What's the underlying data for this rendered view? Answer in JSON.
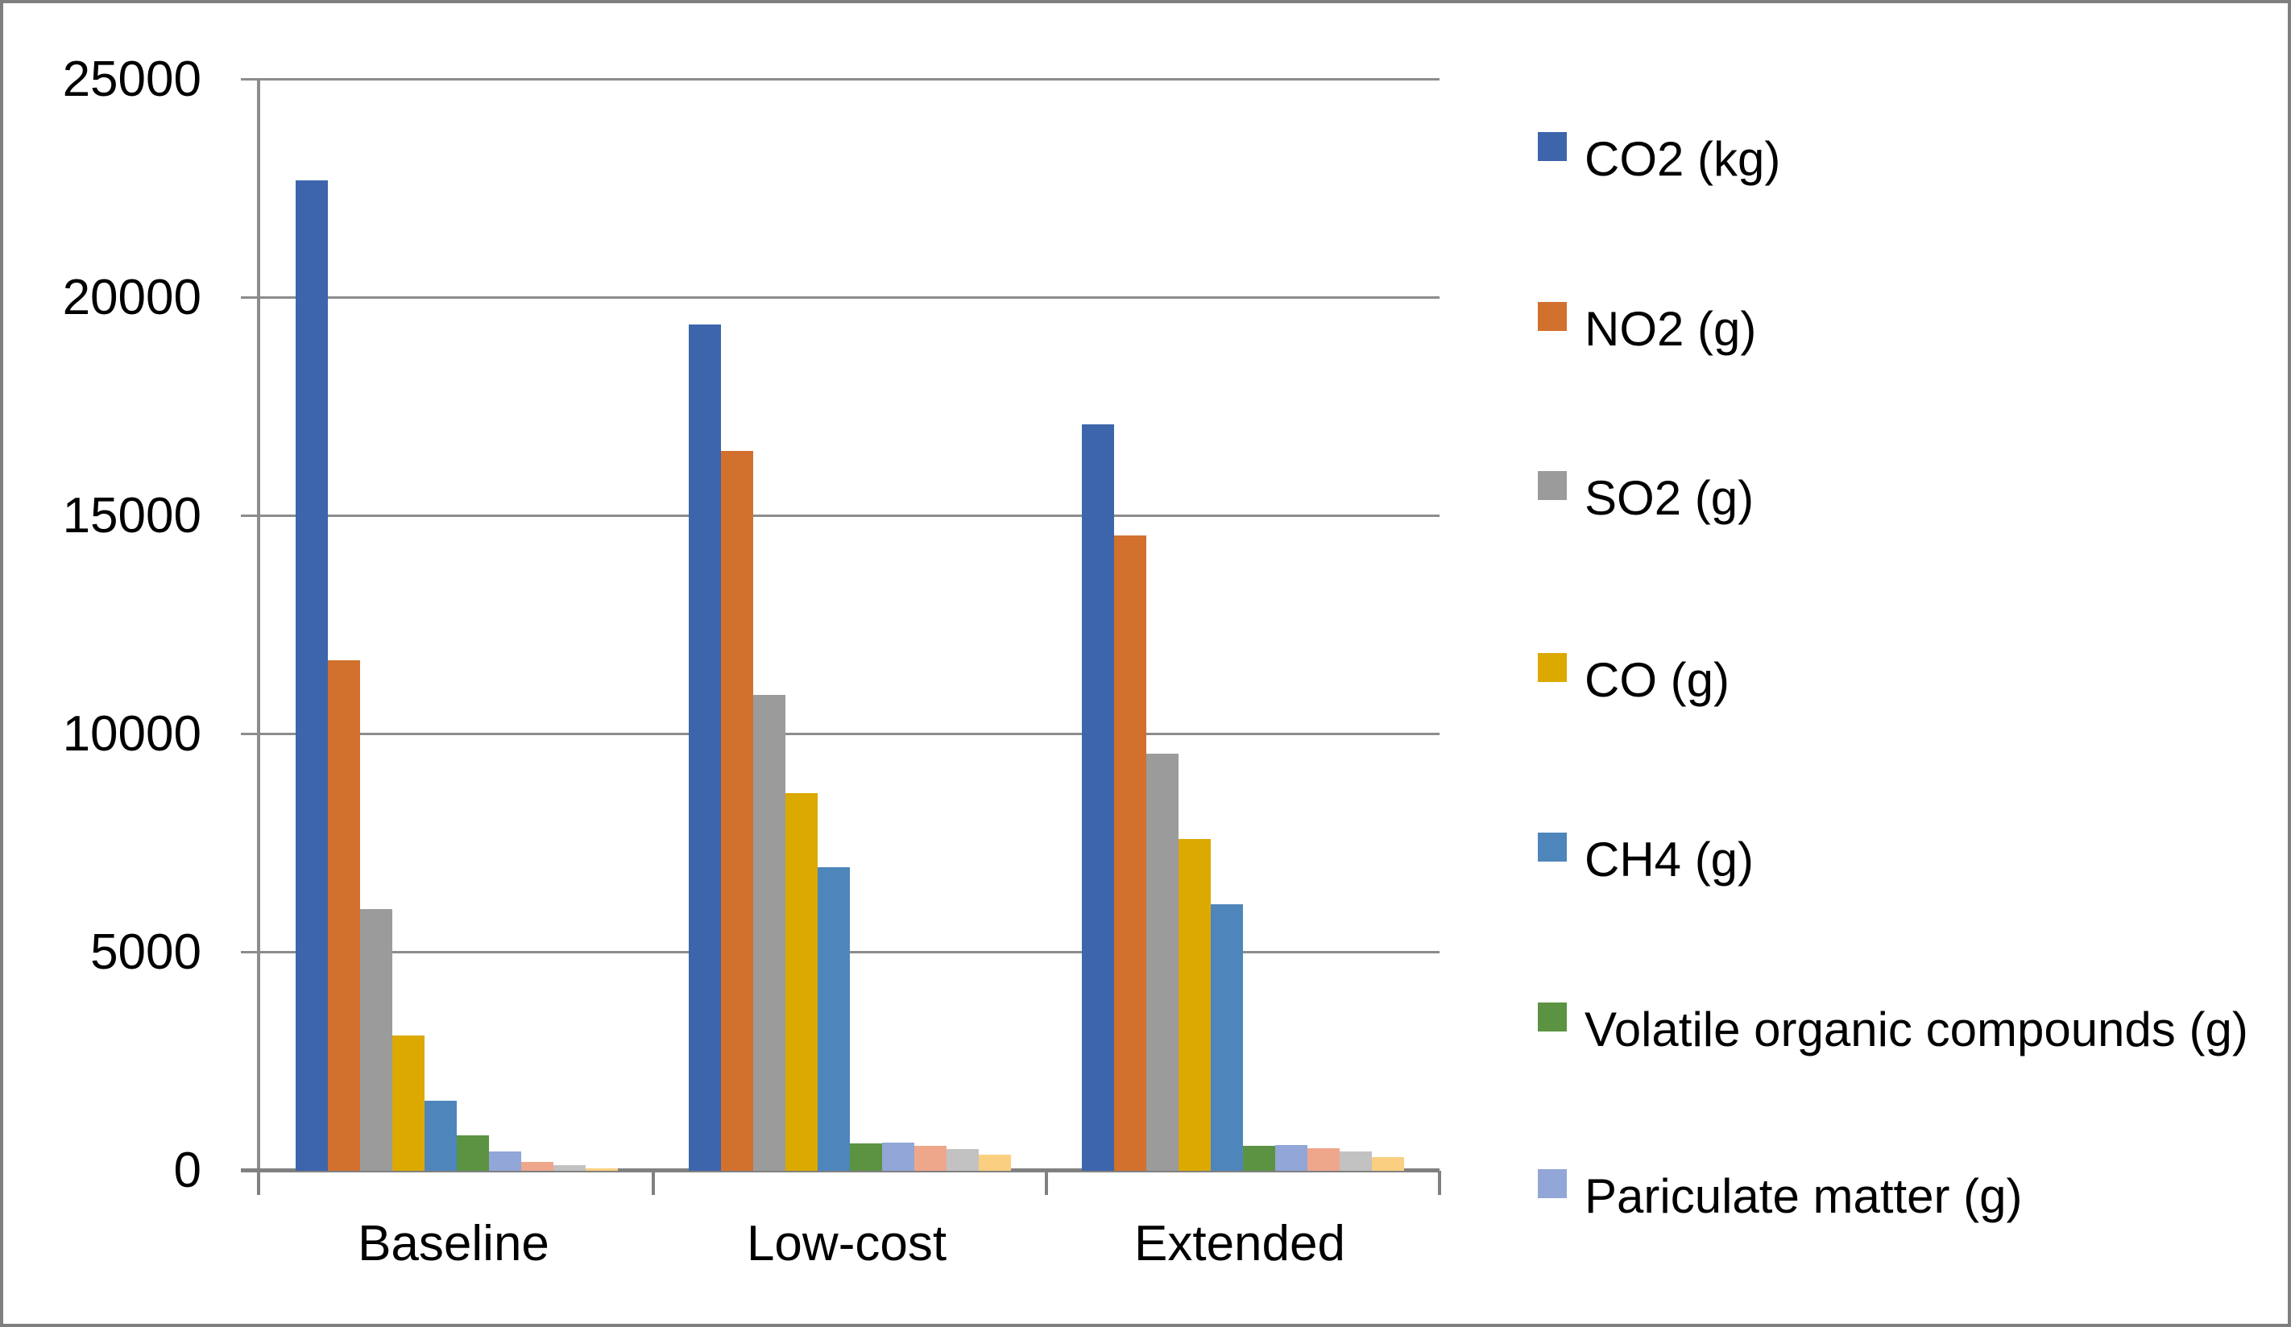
{
  "chart_data": {
    "type": "bar",
    "title": "",
    "categories": [
      "Baseline",
      "Low-cost",
      "Extended"
    ],
    "y_axis": {
      "min": 0,
      "max": 25000,
      "tick_interval": 5000,
      "tick_labels": [
        "0",
        "5000",
        "10000",
        "15000",
        "20000",
        "25000"
      ]
    },
    "grid": true,
    "legend_position": "right",
    "series": [
      {
        "name": "CO2 (kg)",
        "color": "#3D65AC",
        "in_legend": true,
        "values": [
          22700,
          19400,
          17100
        ]
      },
      {
        "name": "NO2 (g)",
        "color": "#D2702E",
        "in_legend": true,
        "values": [
          11700,
          16500,
          14550
        ]
      },
      {
        "name": "SO2 (g)",
        "color": "#9B9B9B",
        "in_legend": true,
        "values": [
          6000,
          10900,
          9550
        ]
      },
      {
        "name": "CO (g)",
        "color": "#DBA900",
        "in_legend": true,
        "values": [
          3100,
          8650,
          7600
        ]
      },
      {
        "name": "CH4 (g)",
        "color": "#4E86BC",
        "in_legend": true,
        "values": [
          1600,
          6950,
          6100
        ]
      },
      {
        "name": "Volatile organic compounds (g)",
        "color": "#5B9342",
        "in_legend": true,
        "values": [
          810,
          620,
          570
        ]
      },
      {
        "name": "Pariculate matter (g)",
        "color": "#92A6D8",
        "in_legend": true,
        "values": [
          450,
          650,
          590
        ]
      },
      {
        "name": "",
        "color": "#EFA78C",
        "in_legend": false,
        "values": [
          200,
          570,
          510
        ]
      },
      {
        "name": "",
        "color": "#C2C2C2",
        "in_legend": false,
        "values": [
          120,
          500,
          450
        ]
      },
      {
        "name": "",
        "color": "#FBCF81",
        "in_legend": false,
        "values": [
          50,
          370,
          320
        ]
      }
    ]
  }
}
